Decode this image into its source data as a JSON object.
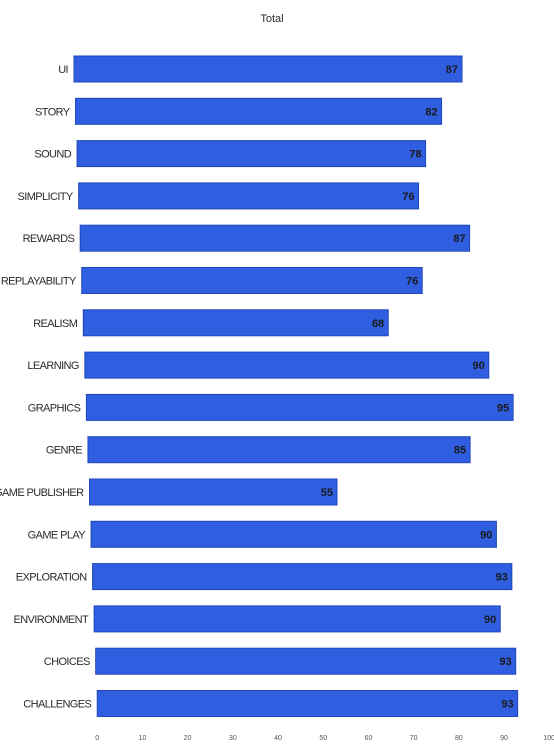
{
  "chart_data": {
    "type": "bar",
    "orientation": "horizontal",
    "title": "Total",
    "categories": [
      "UI",
      "STORY",
      "SOUND",
      "SIMPLICITY",
      "REWARDS",
      "REPLAYABILITY",
      "REALISM",
      "LEARNING",
      "GRAPHICS",
      "GENRE",
      "GAME PUBLISHER",
      "GAME PLAY",
      "EXPLORATION",
      "ENVIRONMENT",
      "CHOICES",
      "CHALLENGES"
    ],
    "values": [
      87,
      82,
      78,
      76,
      87,
      76,
      68,
      90,
      95,
      85,
      55,
      90,
      93,
      90,
      93,
      93
    ],
    "data_labels": [
      "87",
      "82",
      "78",
      "76",
      "87",
      "76",
      "68",
      "90",
      "95",
      "85",
      "55",
      "90",
      "93",
      "90",
      "93",
      "93"
    ],
    "xlim": [
      0,
      100
    ],
    "x_ticks": [
      "0",
      "10",
      "20",
      "30",
      "40",
      "50",
      "60",
      "70",
      "80",
      "90",
      "100"
    ],
    "xlabel": "",
    "ylabel": "",
    "grid": false,
    "legend": "none",
    "bar_color": "#2f5fe0",
    "bar_edge_color": "#1f46b8"
  }
}
